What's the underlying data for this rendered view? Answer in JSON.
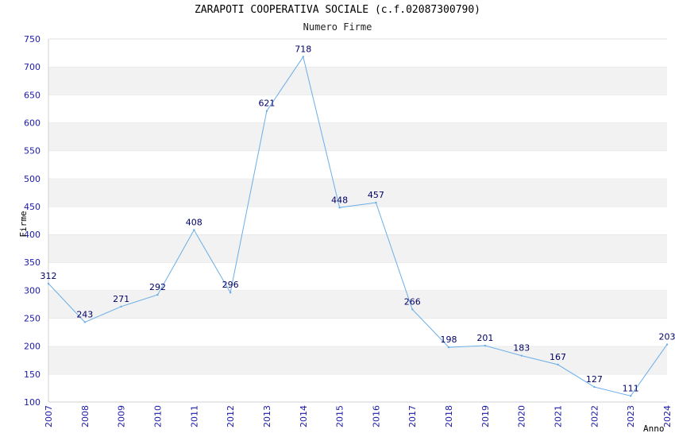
{
  "chart_data": {
    "type": "line",
    "title": "ZARAPOTI COOPERATIVA SOCIALE (c.f.02087300790)",
    "subtitle": "Numero Firme",
    "xlabel": "Anno",
    "ylabel": "Firme",
    "ylim": [
      100,
      750
    ],
    "yticks": [
      100,
      150,
      200,
      250,
      300,
      350,
      400,
      450,
      500,
      550,
      600,
      650,
      700,
      750
    ],
    "grid": "alternating horizontal bands",
    "series": [
      {
        "color": "#6aaee8",
        "x": [
          "2007",
          "2008",
          "2009",
          "2010",
          "2011",
          "2012",
          "2013",
          "2014",
          "2015",
          "2016",
          "2017",
          "2018",
          "2019",
          "2020",
          "2021",
          "2022",
          "2023",
          "2024"
        ],
        "values": [
          312,
          243,
          271,
          292,
          408,
          296,
          621,
          718,
          448,
          457,
          266,
          198,
          201,
          183,
          167,
          127,
          111,
          203
        ]
      }
    ]
  }
}
